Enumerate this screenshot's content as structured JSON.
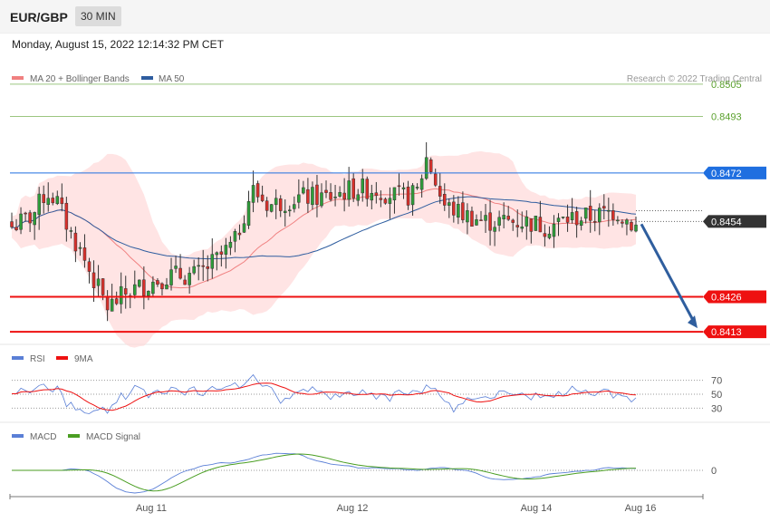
{
  "header": {
    "pair": "EUR/GBP",
    "timeframe": "30 MIN"
  },
  "date_label": "Monday, August 15, 2022 12:14:32 PM CET",
  "legend": {
    "ma20": {
      "label": "MA 20 + Bollinger Bands",
      "color": "#f08080"
    },
    "ma50": {
      "label": "MA 50",
      "color": "#2e5d9f"
    }
  },
  "copyright": "Research © 2022 Trading Central",
  "chart_data": [
    {
      "type": "candlestick",
      "levels": [
        {
          "value": 0.8505,
          "label": "0.8505",
          "color": "#5aa02c",
          "style": "thin"
        },
        {
          "value": 0.8493,
          "label": "0.8493",
          "color": "#5aa02c",
          "style": "thin"
        },
        {
          "value": 0.8472,
          "label": "0.8472",
          "color": "#1f6fe0",
          "style": "badge"
        },
        {
          "value": 0.8454,
          "label": "0.8454",
          "color": "#333333",
          "style": "current"
        },
        {
          "value": 0.8426,
          "label": "0.8426",
          "color": "#ee1111",
          "style": "badge-thick"
        },
        {
          "value": 0.8413,
          "label": "0.8413",
          "color": "#ee1111",
          "style": "badge-thick"
        }
      ],
      "ylim": [
        0.8409,
        0.851
      ],
      "x_ticks": [
        "Aug 11",
        "Aug 12",
        "Aug 14",
        "Aug 16"
      ],
      "grid": false
    },
    {
      "type": "line",
      "legend": [
        {
          "name": "RSI",
          "color": "#5a7fd6"
        },
        {
          "name": "9MA",
          "color": "#ee1111"
        }
      ],
      "y_ticks": [
        "70",
        "50",
        "30"
      ],
      "ylim": [
        20,
        80
      ]
    },
    {
      "type": "line",
      "legend": [
        {
          "name": "MACD",
          "color": "#5a7fd6"
        },
        {
          "name": "MACD Signal",
          "color": "#4a9e22"
        }
      ],
      "y_ticks": [
        "0"
      ]
    }
  ]
}
